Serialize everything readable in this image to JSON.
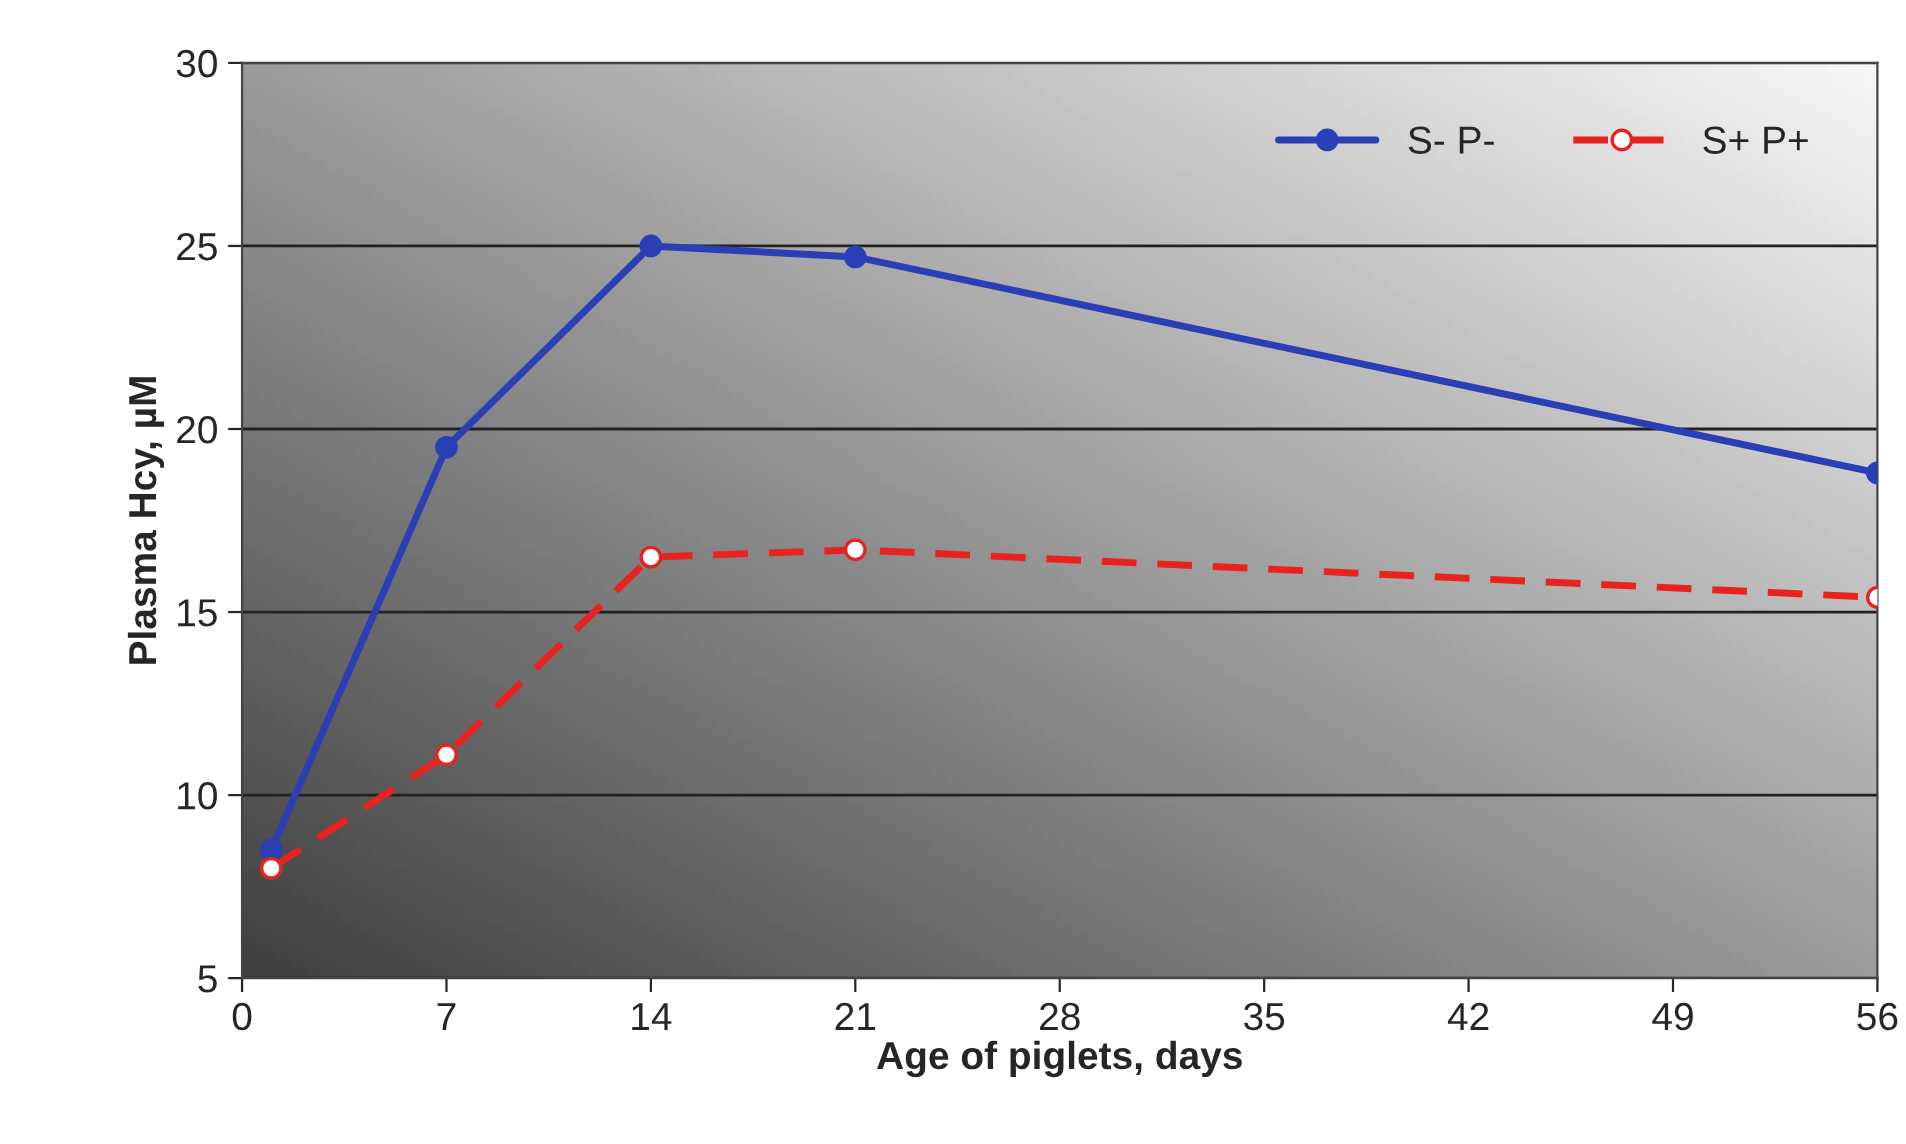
{
  "chart_data": {
    "type": "line",
    "xlabel": "Age of piglets, days",
    "ylabel": "Plasma Hcy, µM",
    "x": [
      1,
      7,
      14,
      21,
      56
    ],
    "series": [
      {
        "name": "S- P-",
        "color": "#2a3fb5",
        "values": [
          8.5,
          19.5,
          25.0,
          24.7,
          18.8
        ],
        "line_style": "solid"
      },
      {
        "name": "S+ P+",
        "color": "#e8231f",
        "values": [
          8.0,
          11.1,
          16.5,
          16.7,
          15.4
        ],
        "line_style": "dashed"
      }
    ],
    "xlim": [
      0,
      56
    ],
    "xticks": [
      0,
      7,
      14,
      21,
      28,
      35,
      42,
      49,
      56
    ],
    "ylim": [
      5,
      30
    ],
    "yticks": [
      5,
      10,
      15,
      20,
      25,
      30
    ],
    "grid": "y",
    "legend": "top right",
    "marker": "circle"
  }
}
